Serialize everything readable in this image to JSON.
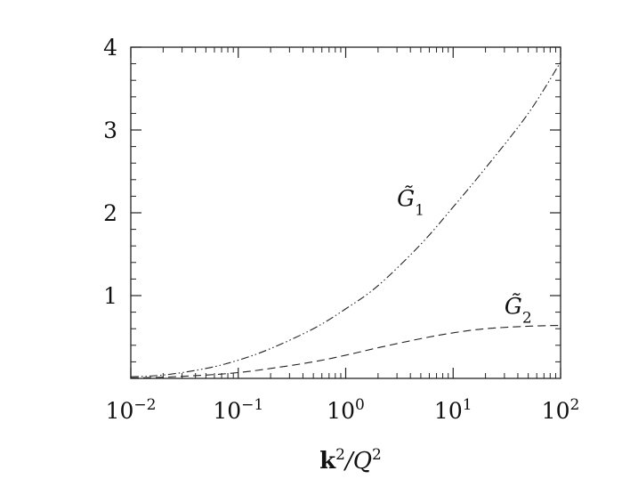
{
  "chart_data": {
    "type": "line",
    "xlabel": {
      "bold": "k",
      "sup": "2",
      "rest": "/Q",
      "rest_sup": "2"
    },
    "ylabel": "",
    "x_scale": "log",
    "xlim": [
      0.01,
      100
    ],
    "ylim": [
      0,
      4
    ],
    "x_ticks": [
      {
        "value": 0.01,
        "base": "10",
        "exp": "−2"
      },
      {
        "value": 0.1,
        "base": "10",
        "exp": "−1"
      },
      {
        "value": 1,
        "base": "10",
        "exp": "0"
      },
      {
        "value": 10,
        "base": "10",
        "exp": "1"
      },
      {
        "value": 100,
        "base": "10",
        "exp": "2"
      }
    ],
    "y_ticks": [
      {
        "value": 1,
        "label": "1"
      },
      {
        "value": 2,
        "label": "2"
      },
      {
        "value": 3,
        "label": "3"
      },
      {
        "value": 4,
        "label": "4"
      }
    ],
    "grid": false,
    "legend": "none",
    "series": [
      {
        "name": "G̃1",
        "label_main": "G̃",
        "label_sub": "1",
        "label_at": {
          "x": 3.0,
          "y": 2.08
        },
        "dash": "dash-dot-dot",
        "color": "#222222",
        "x": [
          0.01,
          0.02,
          0.05,
          0.1,
          0.2,
          0.5,
          1,
          2,
          5,
          10,
          20,
          50,
          100
        ],
        "y": [
          0.02,
          0.04,
          0.12,
          0.22,
          0.36,
          0.6,
          0.84,
          1.12,
          1.62,
          2.07,
          2.54,
          3.2,
          3.82
        ]
      },
      {
        "name": "G̃2",
        "label_main": "G̃",
        "label_sub": "2",
        "label_at": {
          "x": 30,
          "y": 0.78
        },
        "dash": "dashed",
        "color": "#222222",
        "x": [
          0.01,
          0.02,
          0.05,
          0.1,
          0.2,
          0.5,
          1,
          2,
          5,
          10,
          20,
          50,
          100
        ],
        "y": [
          0.005,
          0.015,
          0.04,
          0.07,
          0.12,
          0.2,
          0.28,
          0.37,
          0.48,
          0.55,
          0.6,
          0.63,
          0.64
        ]
      }
    ]
  }
}
